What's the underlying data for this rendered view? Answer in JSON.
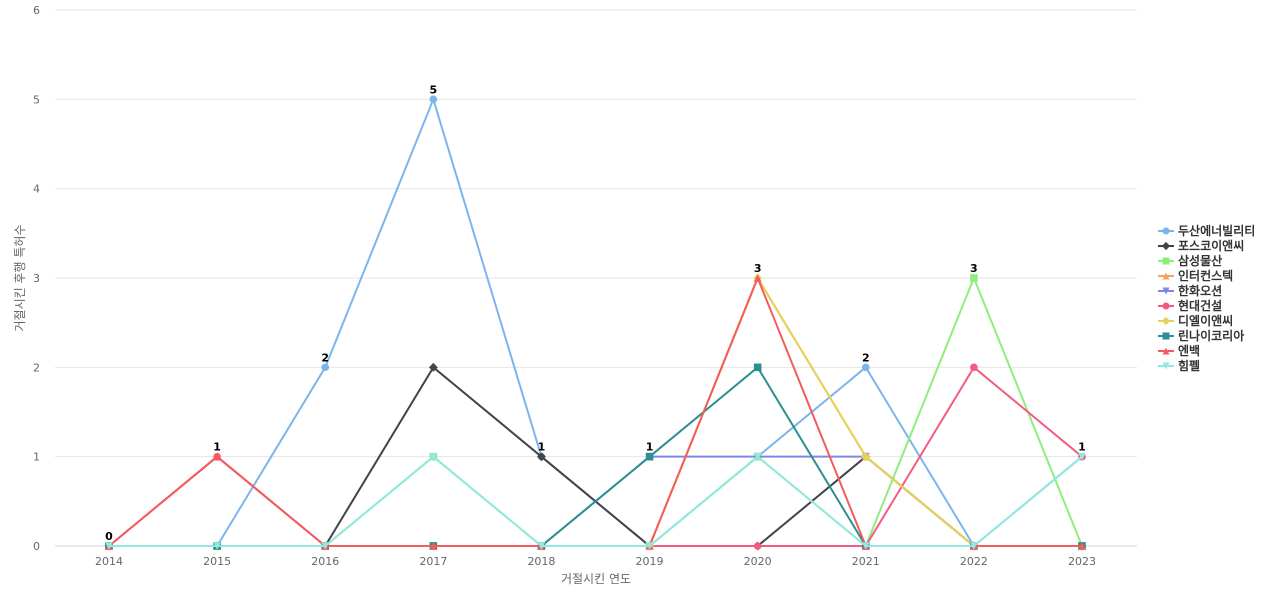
{
  "chart_data": {
    "type": "line",
    "title": "",
    "xlabel": "거절시킨 연도",
    "ylabel": "거절시킨 후행 특허수",
    "ylim": [
      0,
      6
    ],
    "yticks": [
      0,
      1,
      2,
      3,
      4,
      5,
      6
    ],
    "x": [
      "2014",
      "2015",
      "2016",
      "2017",
      "2018",
      "2019",
      "2020",
      "2021",
      "2022",
      "2023"
    ],
    "grid": true,
    "legend_position": "right",
    "series": [
      {
        "name": "두산에너빌리티",
        "color": "#7cb5ec",
        "marker": "circle",
        "values": [
          0,
          0,
          2,
          5,
          1,
          0,
          1,
          2,
          0,
          1
        ]
      },
      {
        "name": "포스코이앤씨",
        "color": "#434348",
        "marker": "diamond",
        "values": [
          0,
          0,
          0,
          2,
          1,
          0,
          0,
          1,
          0,
          0
        ]
      },
      {
        "name": "삼성물산",
        "color": "#90ed7d",
        "marker": "square",
        "values": [
          0,
          0,
          0,
          1,
          0,
          0,
          1,
          0,
          3,
          0
        ]
      },
      {
        "name": "인터컨스텍",
        "color": "#f7a35c",
        "marker": "triangle",
        "values": [
          0,
          0,
          0,
          0,
          0,
          0,
          3,
          1,
          0,
          0
        ]
      },
      {
        "name": "한화오션",
        "color": "#8085e9",
        "marker": "triangle-down",
        "values": [
          0,
          0,
          0,
          0,
          0,
          1,
          1,
          1,
          0,
          0
        ]
      },
      {
        "name": "현대건설",
        "color": "#f15c80",
        "marker": "circle",
        "values": [
          0,
          1,
          0,
          0,
          0,
          0,
          0,
          0,
          2,
          1
        ]
      },
      {
        "name": "디엘이앤씨",
        "color": "#e4d354",
        "marker": "diamond",
        "values": [
          0,
          0,
          0,
          0,
          0,
          0,
          3,
          1,
          0,
          0
        ]
      },
      {
        "name": "린나이코리아",
        "color": "#2b908f",
        "marker": "square",
        "values": [
          0,
          0,
          0,
          0,
          0,
          1,
          2,
          0,
          0,
          0
        ]
      },
      {
        "name": "엔백",
        "color": "#f45b5b",
        "marker": "triangle",
        "values": [
          0,
          1,
          0,
          0,
          0,
          0,
          3,
          0,
          0,
          0
        ]
      },
      {
        "name": "힘펠",
        "color": "#91e8e1",
        "marker": "triangle-down",
        "values": [
          0,
          0,
          0,
          1,
          0,
          0,
          1,
          0,
          0,
          1
        ]
      }
    ],
    "data_labels": [
      0,
      1,
      2,
      5,
      1,
      1,
      3,
      2,
      3,
      1
    ]
  }
}
